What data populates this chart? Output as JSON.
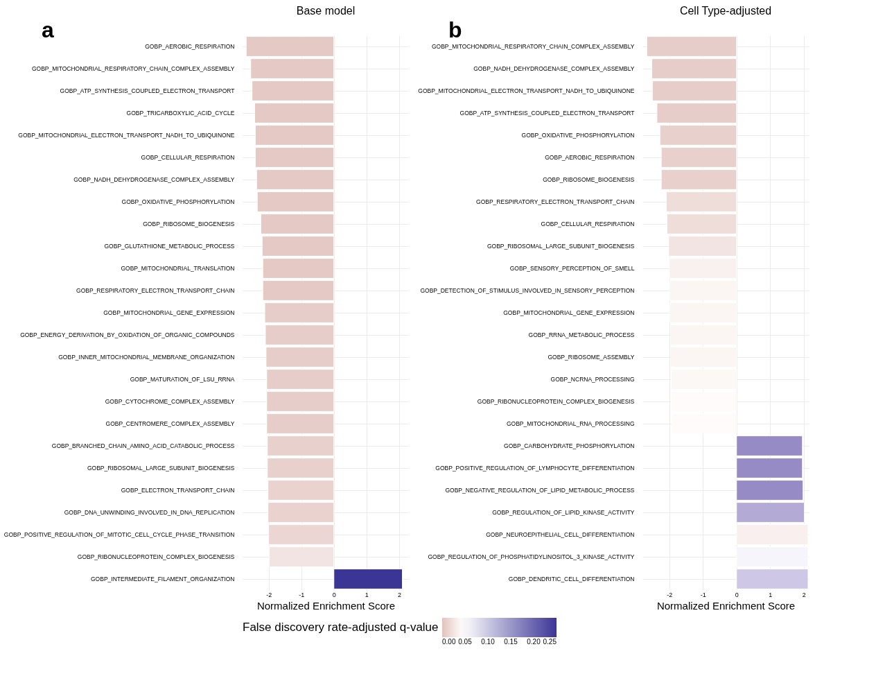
{
  "chart_data": [
    {
      "type": "bar",
      "orientation": "horizontal",
      "title": "Base model",
      "annotations": [
        "a"
      ],
      "xlabel": "Normalized Enrichment Score",
      "clabel": "False discovery rate-adjusted q-value",
      "clim": [
        0,
        0.25
      ],
      "cticks": [
        {
          "value": 0,
          "label": "0.00"
        },
        {
          "value": 0.05,
          "label": "0.05"
        },
        {
          "value": 0.1,
          "label": "0.10"
        },
        {
          "value": 0.15,
          "label": "0.15"
        },
        {
          "value": 0.2,
          "label": "0.20"
        },
        {
          "value": 0.25,
          "label": "0.25"
        }
      ],
      "grid": true,
      "xlim": [
        -2.8,
        2.3
      ],
      "xticks": [
        -2,
        -1,
        0,
        1,
        2
      ],
      "categories": [
        "GOBP_AEROBIC_RESPIRATION",
        "GOBP_MITOCHONDRIAL_RESPIRATORY_CHAIN_COMPLEX_ASSEMBLY",
        "GOBP_ATP_SYNTHESIS_COUPLED_ELECTRON_TRANSPORT",
        "GOBP_TRICARBOXYLIC_ACID_CYCLE",
        "GOBP_MITOCHONDRIAL_ELECTRON_TRANSPORT_NADH_TO_UBIQUINONE",
        "GOBP_CELLULAR_RESPIRATION",
        "GOBP_NADH_DEHYDROGENASE_COMPLEX_ASSEMBLY",
        "GOBP_OXIDATIVE_PHOSPHORYLATION",
        "GOBP_RIBOSOME_BIOGENESIS",
        "GOBP_GLUTATHIONE_METABOLIC_PROCESS",
        "GOBP_MITOCHONDRIAL_TRANSLATION",
        "GOBP_RESPIRATORY_ELECTRON_TRANSPORT_CHAIN",
        "GOBP_MITOCHONDRIAL_GENE_EXPRESSION",
        "GOBP_ENERGY_DERIVATION_BY_OXIDATION_OF_ORGANIC_COMPOUNDS",
        "GOBP_INNER_MITOCHONDRIAL_MEMBRANE_ORGANIZATION",
        "GOBP_MATURATION_OF_LSU_RRNA",
        "GOBP_CYTOCHROME_COMPLEX_ASSEMBLY",
        "GOBP_CENTROMERE_COMPLEX_ASSEMBLY",
        "GOBP_BRANCHED_CHAIN_AMINO_ACID_CATABOLIC_PROCESS",
        "GOBP_RIBOSOMAL_LARGE_SUBUNIT_BIOGENESIS",
        "GOBP_ELECTRON_TRANSPORT_CHAIN",
        "GOBP_DNA_UNWINDING_INVOLVED_IN_DNA_REPLICATION",
        "GOBP_POSITIVE_REGULATION_OF_MITOTIC_CELL_CYCLE_PHASE_TRANSITION",
        "GOBP_RIBONUCLEOPROTEIN_COMPLEX_BIOGENESIS",
        "GOBP_INTERMEDIATE_FILAMENT_ORGANIZATION"
      ],
      "values": [
        -2.69,
        -2.55,
        -2.51,
        -2.43,
        -2.41,
        -2.41,
        -2.37,
        -2.35,
        -2.24,
        -2.2,
        -2.18,
        -2.18,
        -2.12,
        -2.1,
        -2.08,
        -2.06,
        -2.06,
        -2.06,
        -2.04,
        -2.04,
        -2.02,
        -2.02,
        -2.0,
        -1.98,
        2.1
      ],
      "cvalues": [
        0.005,
        0.005,
        0.005,
        0.005,
        0.005,
        0.005,
        0.005,
        0.005,
        0.005,
        0.005,
        0.005,
        0.005,
        0.008,
        0.008,
        0.008,
        0.008,
        0.008,
        0.008,
        0.01,
        0.01,
        0.012,
        0.012,
        0.015,
        0.025,
        0.25
      ]
    },
    {
      "type": "bar",
      "orientation": "horizontal",
      "title": "Cell Type-adjusted",
      "annotations": [
        "b"
      ],
      "xlabel": "Normalized Enrichment Score",
      "grid": true,
      "xlim": [
        -2.8,
        2.15
      ],
      "xticks": [
        -2,
        -1,
        0,
        1,
        2
      ],
      "categories": [
        "GOBP_MITOCHONDRIAL_RESPIRATORY_CHAIN_COMPLEX_ASSEMBLY",
        "GOBP_NADH_DEHYDROGENASE_COMPLEX_ASSEMBLY",
        "GOBP_MITOCHONDRIAL_ELECTRON_TRANSPORT_NADH_TO_UBIQUINONE",
        "GOBP_ATP_SYNTHESIS_COUPLED_ELECTRON_TRANSPORT",
        "GOBP_OXIDATIVE_PHOSPHORYLATION",
        "GOBP_AEROBIC_RESPIRATION",
        "GOBP_RIBOSOME_BIOGENESIS",
        "GOBP_RESPIRATORY_ELECTRON_TRANSPORT_CHAIN",
        "GOBP_CELLULAR_RESPIRATION",
        "GOBP_RIBOSOMAL_LARGE_SUBUNIT_BIOGENESIS",
        "GOBP_SENSORY_PERCEPTION_OF_SMELL",
        "GOBP_DETECTION_OF_STIMULUS_INVOLVED_IN_SENSORY_PERCEPTION",
        "GOBP_MITOCHONDRIAL_GENE_EXPRESSION",
        "GOBP_RRNA_METABOLIC_PROCESS",
        "GOBP_RIBOSOME_ASSEMBLY",
        "GOBP_NCRNA_PROCESSING",
        "GOBP_RIBONUCLEOPROTEIN_COMPLEX_BIOGENESIS",
        "GOBP_MITOCHONDRIAL_RNA_PROCESSING",
        "GOBP_CARBOHYDRATE_PHOSPHORYLATION",
        "GOBP_POSITIVE_REGULATION_OF_LYMPHOCYTE_DIFFERENTIATION",
        "GOBP_NEGATIVE_REGULATION_OF_LIPID_METABOLIC_PROCESS",
        "GOBP_REGULATION_OF_LIPID_KINASE_ACTIVITY",
        "GOBP_NEUROEPITHELIAL_CELL_DIFFERENTIATION",
        "GOBP_REGULATION_OF_PHOSPHATIDYLINOSITOL_3_KINASE_ACTIVITY",
        "GOBP_DENDRITIC_CELL_DIFFERENTIATION"
      ],
      "values": [
        -2.67,
        -2.52,
        -2.5,
        -2.37,
        -2.28,
        -2.24,
        -2.24,
        -2.09,
        -2.07,
        -2.02,
        -2.0,
        -1.98,
        -1.98,
        -1.96,
        -1.96,
        -1.94,
        -1.94,
        -1.93,
        1.96,
        1.96,
        1.98,
        2.02,
        2.13,
        2.13,
        2.13
      ],
      "colors": [
        "#e7cdc9",
        "#e7cdc9",
        "#e7cdc9",
        "#e7cdc9",
        "#e8d0cc",
        "#e8d0cc",
        "#e8d0cc",
        "#efddda",
        "#efddda",
        "#f2e4e2",
        "#f9f1f0",
        "#fbf5f3",
        "#fbf5f3",
        "#fbf5f3",
        "#fbf5f3",
        "#fcf8f6",
        "#fefbfa",
        "#fefbfa",
        "#968bc4",
        "#968bc4",
        "#968bc4",
        "#b3aad6",
        "#f8efee",
        "#f6f5fb",
        "#cec8e6"
      ]
    }
  ]
}
